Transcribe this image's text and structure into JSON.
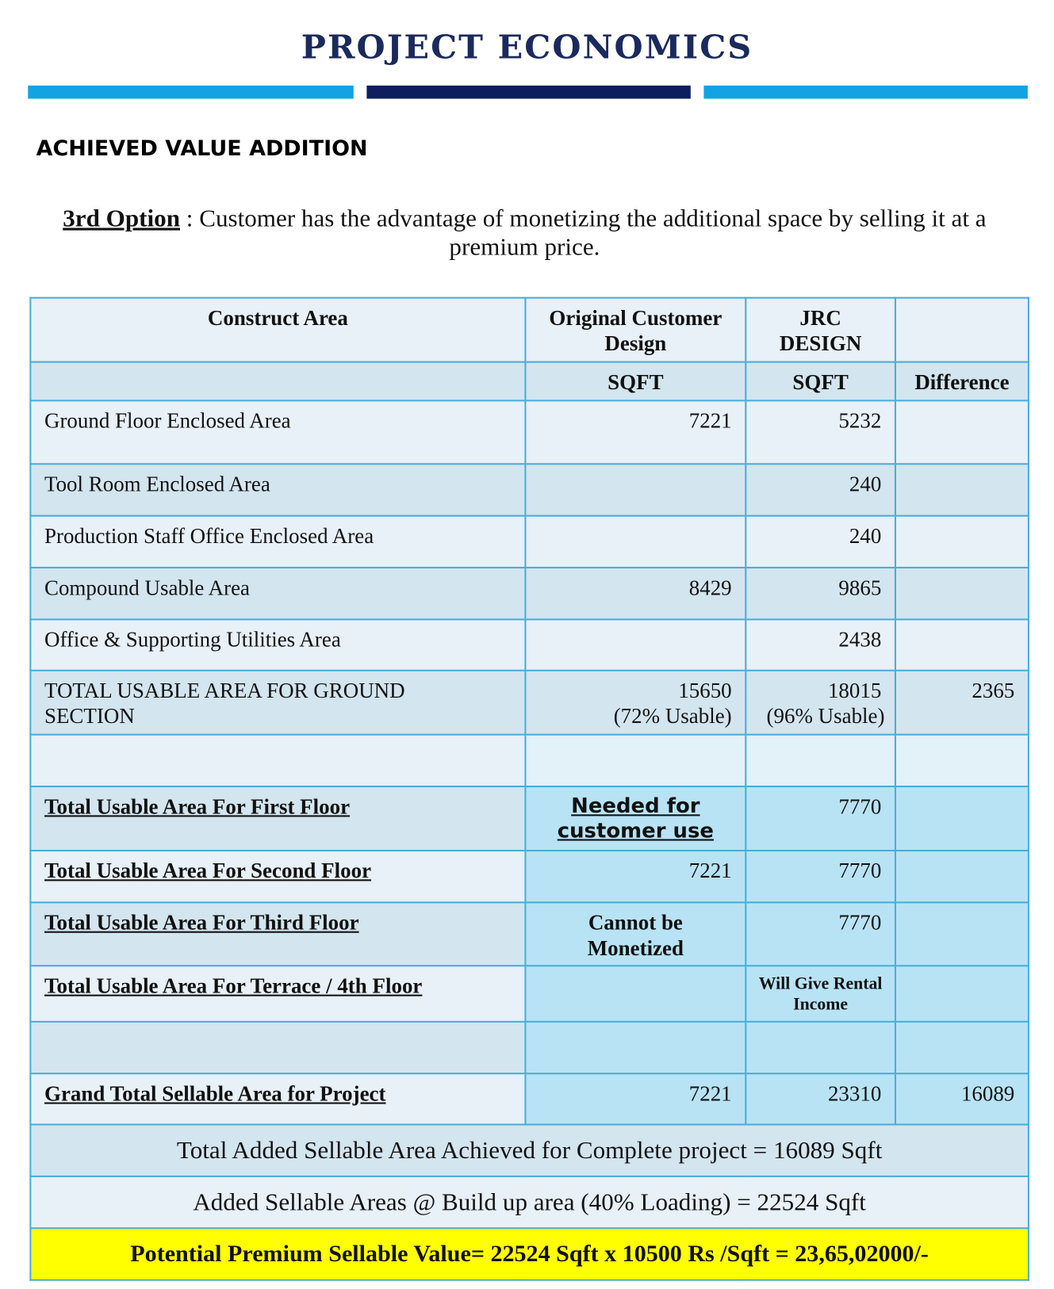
{
  "header": {
    "title": "PROJECT ECONOMICS"
  },
  "section_title": "ACHIEVED VALUE ADDITION",
  "intro": {
    "label": "3rd Option",
    "text": ": Customer has the advantage of monetizing the additional space by selling it at a premium price."
  },
  "table": {
    "headers": [
      {
        "construct": "Construct Area",
        "original": "Original Customer Design",
        "jrc": "JRC DESIGN"
      },
      {
        "original": "SQFT",
        "jrc": "SQFT",
        "difference": "Difference"
      }
    ],
    "rows": [
      {
        "label": "Ground Floor Enclosed Area",
        "original": 7221,
        "jrc": 5232
      },
      {
        "label": "Tool Room Enclosed Area",
        "jrc": 240
      },
      {
        "label": "Production Staff  Office Enclosed Area",
        "jrc": 240
      },
      {
        "label": "Compound Usable Area",
        "original": 8429,
        "jrc": 9865
      },
      {
        "label": "Office & Supporting Utilities Area",
        "jrc": 2438
      },
      {
        "label": "TOTAL USABLE AREA FOR GROUND SECTION",
        "original": 15650,
        "original_note": "(72% Usable)",
        "jrc": 18015,
        "jrc_note": "(96% Usable)",
        "difference": 2365
      },
      {
        "label": "Total Usable Area For First Floor",
        "original": "Needed for customer use",
        "jrc": 7770
      },
      {
        "label": "Total Usable Area For Second Floor",
        "original": 7221,
        "jrc": 7770
      },
      {
        "label": "Total Usable Area For Third Floor",
        "original": "Cannot be Monetized",
        "jrc": 7770
      },
      {
        "label": "Total Usable Area For Terrace / 4th Floor",
        "jrc": "Will Give Rental Income"
      },
      {
        "label": "Grand Total Sellable Area for Project",
        "original": 7221,
        "jrc": 23310,
        "difference": 16089
      }
    ],
    "summary": [
      "Total Added Sellable Area Achieved for Complete project = 16089 Sqft",
      "Added Sellable Areas @ Build up area (40% Loading) = 22524 Sqft",
      "Potential Premium Sellable Value= 22524 Sqft x 10500 Rs /Sqft = 23,65,02000/-"
    ]
  }
}
